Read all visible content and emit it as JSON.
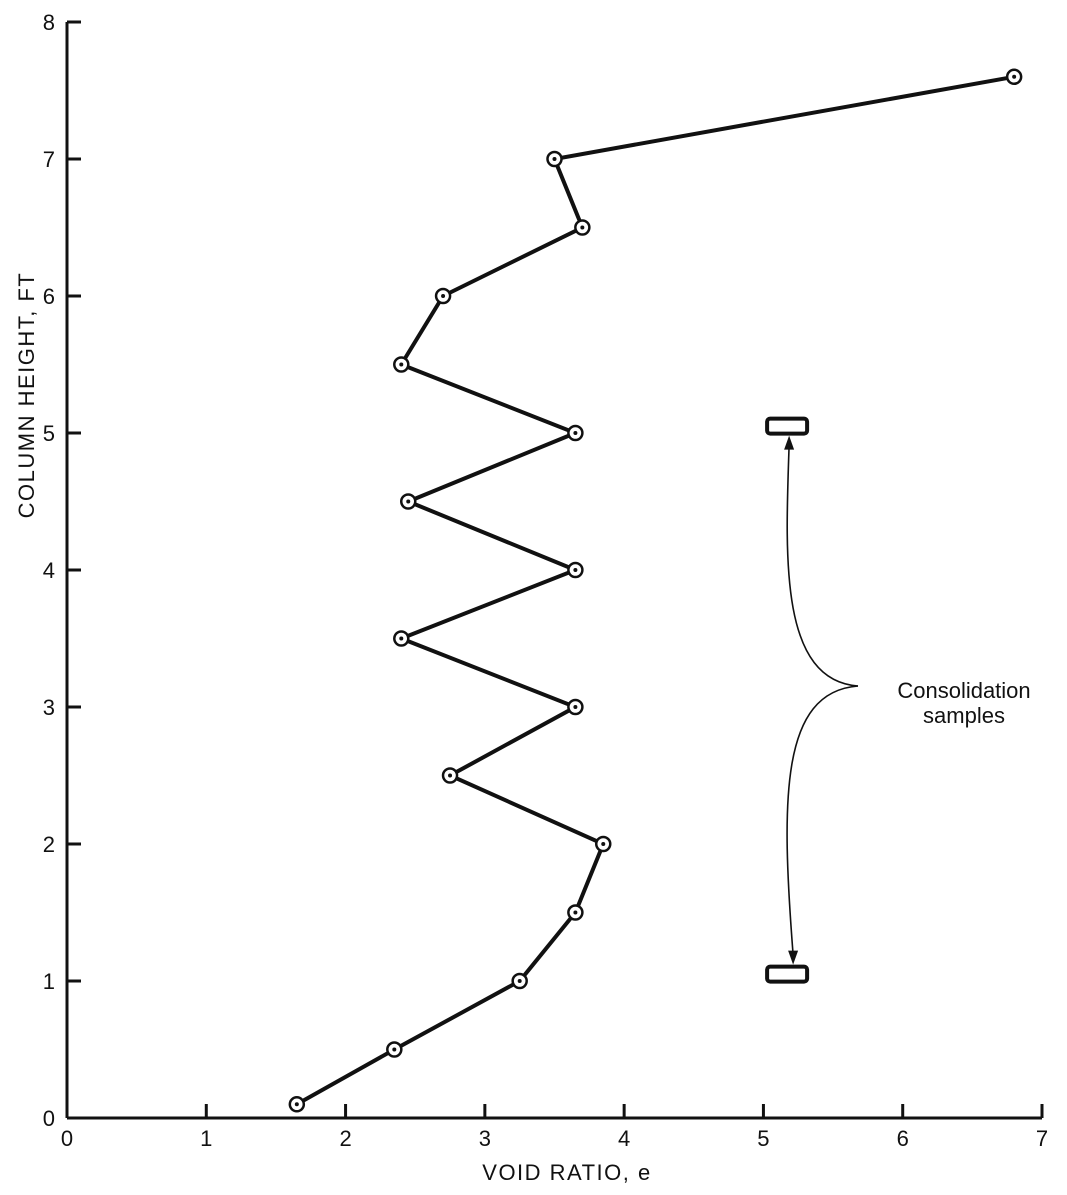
{
  "chart_data": {
    "type": "line",
    "title": "",
    "xlabel": "VOID RATIO, e",
    "ylabel": "COLUMN HEIGHT, FT",
    "xlim": [
      0,
      7
    ],
    "ylim": [
      0,
      8
    ],
    "xticks": [
      "0",
      "1",
      "2",
      "3",
      "4",
      "5",
      "6",
      "7"
    ],
    "yticks": [
      "0",
      "1",
      "2",
      "3",
      "4",
      "5",
      "6",
      "7",
      "8"
    ],
    "grid": false,
    "series": [
      {
        "x": [
          1.65,
          2.35,
          3.25,
          3.65,
          3.85,
          2.75,
          3.65,
          2.4,
          3.65,
          2.45,
          3.65,
          2.4,
          2.7,
          3.7,
          3.5,
          6.8
        ],
        "y": [
          0.1,
          0.5,
          1.0,
          1.5,
          2.0,
          2.5,
          3.0,
          3.5,
          4.0,
          4.5,
          5.0,
          5.5,
          6.0,
          6.5,
          7.0,
          7.6
        ]
      }
    ],
    "annotation": {
      "text_line1": "Consolidation",
      "text_line2": "samples",
      "samples": [
        {
          "x": 5.17,
          "y": 5.05
        },
        {
          "x": 5.17,
          "y": 1.05
        }
      ]
    }
  }
}
